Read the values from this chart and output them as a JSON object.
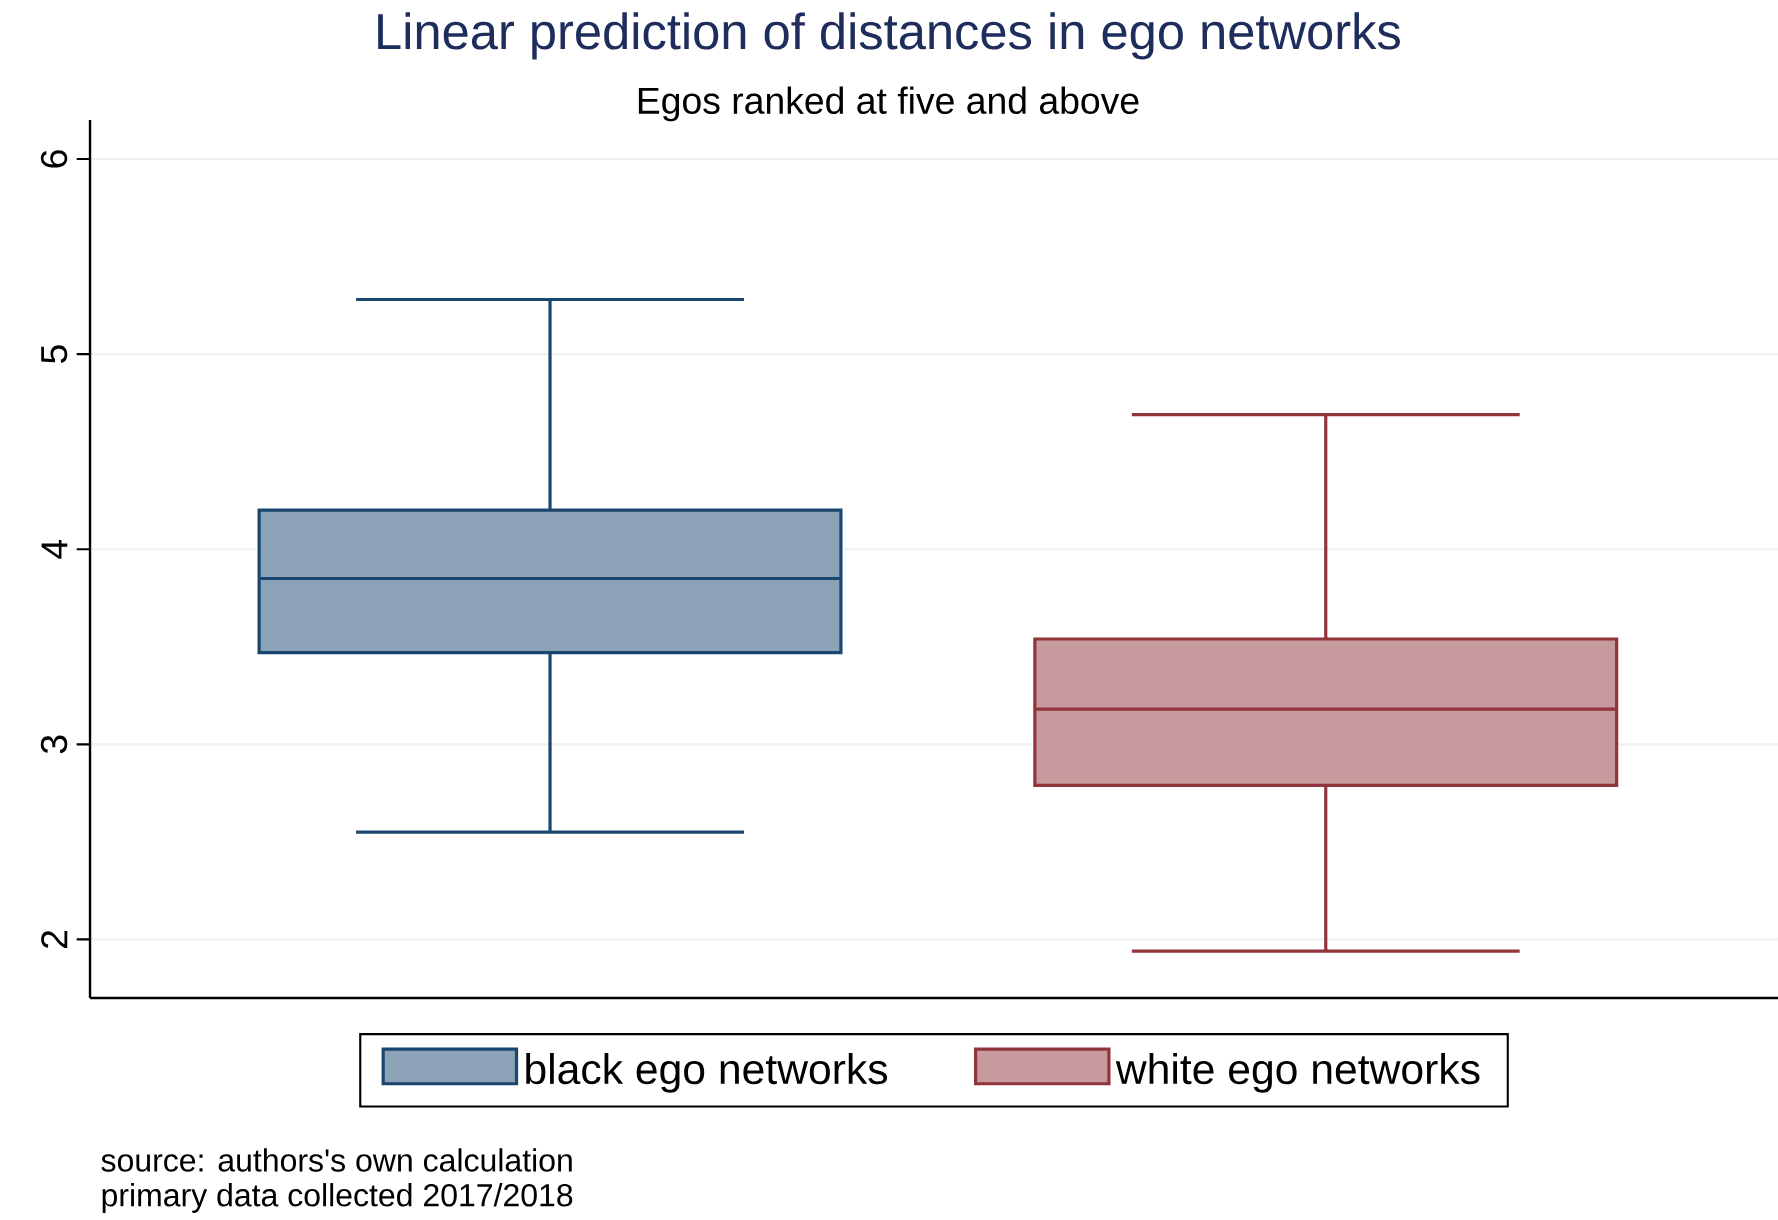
{
  "chart_data": {
    "type": "box",
    "title": "Linear prediction of distances in ego networks",
    "subtitle": "Egos ranked at five and above",
    "categories": [
      null,
      null
    ],
    "series": [
      {
        "name": "black ego networks",
        "color": "#1a476f",
        "boxes": [
          {
            "low": 2.55,
            "q1": 3.47,
            "median": 3.85,
            "q3": 4.2,
            "high": 5.28
          },
          null
        ]
      },
      {
        "name": "white ego networks",
        "color": "#90353b",
        "boxes": [
          null,
          {
            "low": 1.94,
            "q1": 2.79,
            "median": 3.18,
            "q3": 3.54,
            "high": 4.69
          }
        ]
      }
    ],
    "ylim": [
      1.7,
      6.2
    ],
    "yticks": [
      2,
      3,
      4,
      5,
      6
    ],
    "grid": "y",
    "legend": "bottom",
    "tick_labels": "y",
    "annotations": [
      "source: authors's own calculation",
      "primary data collected 2017/2018"
    ]
  }
}
